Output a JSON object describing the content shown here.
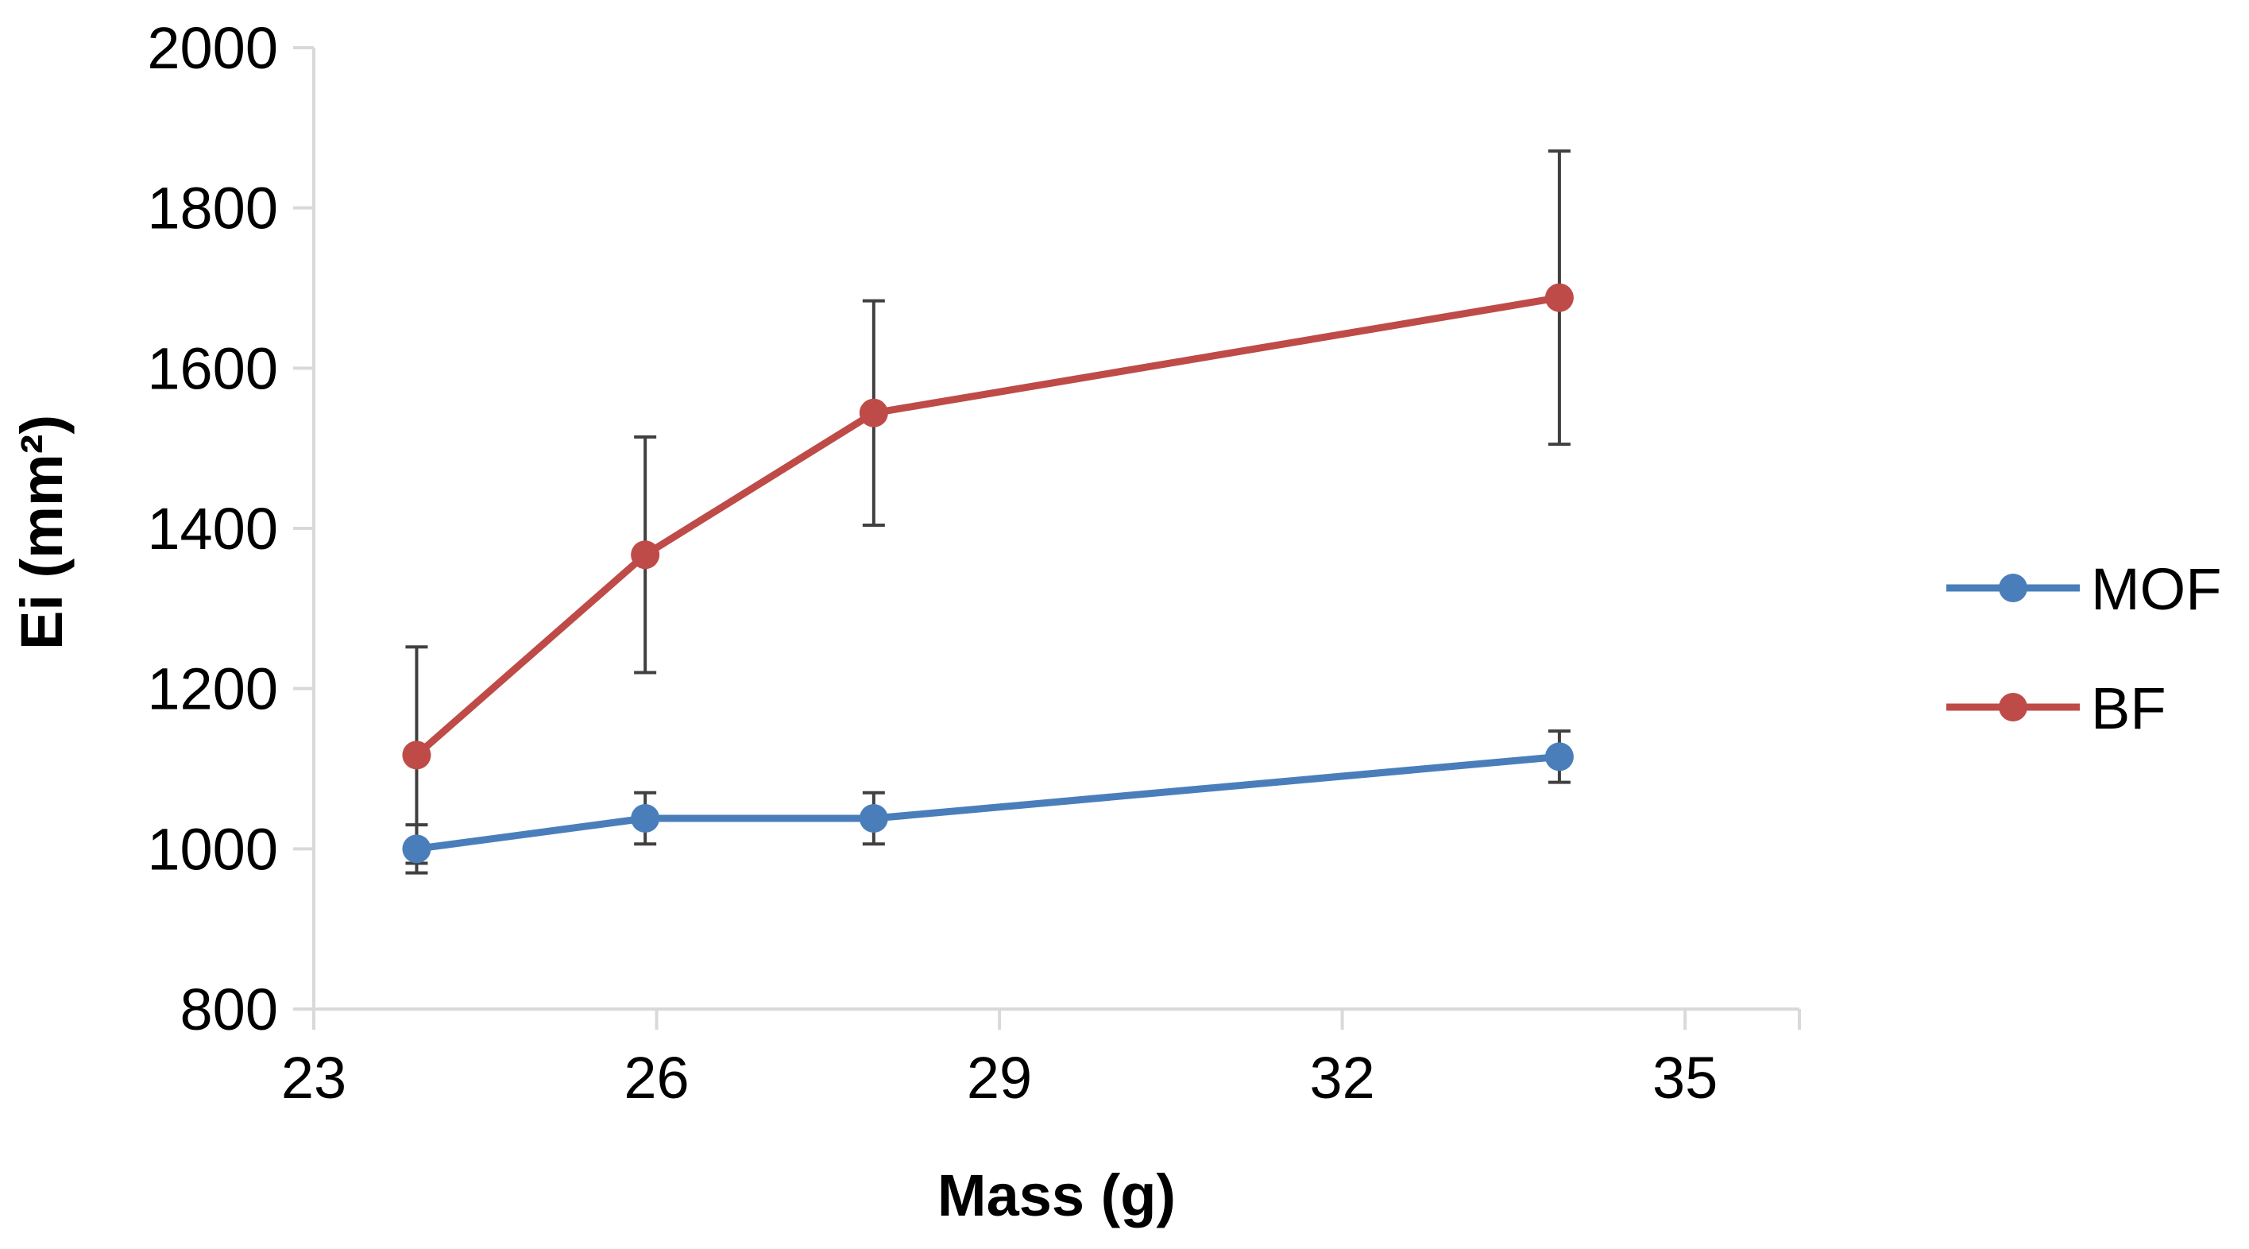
{
  "chart_data": {
    "type": "line",
    "xlabel": "Mass  (g)",
    "ylabel": "Ei (mm²)",
    "xlim": [
      23,
      36
    ],
    "ylim": [
      800,
      2000
    ],
    "x_ticks": [
      23,
      26,
      29,
      32,
      35
    ],
    "y_ticks": [
      800,
      1000,
      1200,
      1400,
      1600,
      1800,
      2000
    ],
    "grid": false,
    "legend_position": "right",
    "series": [
      {
        "name": "MOF",
        "color": "#4a7ebb",
        "x": [
          23.9,
          25.9,
          27.9,
          33.9
        ],
        "y": [
          1000,
          1038,
          1038,
          1115
        ],
        "error": [
          30,
          32,
          32,
          32
        ]
      },
      {
        "name": "BF",
        "color": "#be4b48",
        "x": [
          23.9,
          25.9,
          27.9,
          33.9
        ],
        "y": [
          1117,
          1367,
          1544,
          1688
        ],
        "error": [
          135,
          147,
          140,
          183
        ]
      }
    ]
  }
}
